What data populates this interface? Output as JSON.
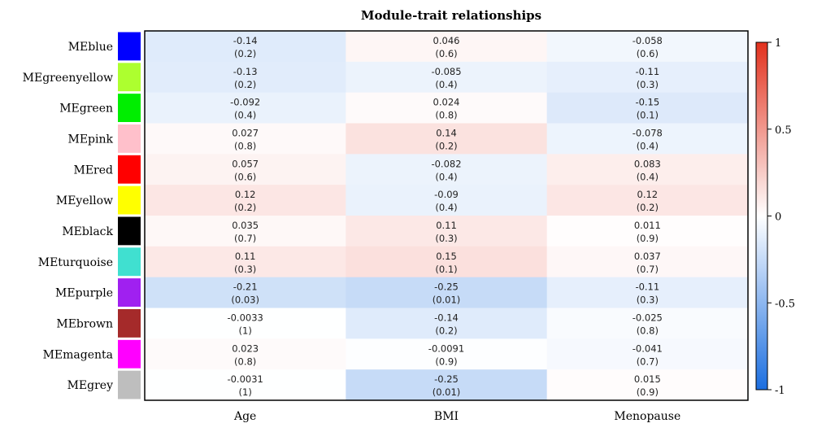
{
  "chart_data": {
    "type": "heatmap",
    "title": "Module-trait relationships",
    "xlabel": "",
    "ylabel": "",
    "columns": [
      "Age",
      "BMI",
      "Menopause"
    ],
    "rows": [
      {
        "name": "MEblue",
        "color": "#0000ff",
        "corr": [
          -0.14,
          0.046,
          -0.058
        ],
        "p": [
          "(0.2)",
          "(0.6)",
          "(0.6)"
        ]
      },
      {
        "name": "MEgreenyellow",
        "color": "#adff2f",
        "corr": [
          -0.13,
          -0.085,
          -0.11
        ],
        "p": [
          "(0.2)",
          "(0.4)",
          "(0.3)"
        ]
      },
      {
        "name": "MEgreen",
        "color": "#00ee00",
        "corr": [
          -0.092,
          0.024,
          -0.15
        ],
        "p": [
          "(0.4)",
          "(0.8)",
          "(0.1)"
        ]
      },
      {
        "name": "MEpink",
        "color": "#ffc0cb",
        "corr": [
          0.027,
          0.14,
          -0.078
        ],
        "p": [
          "(0.8)",
          "(0.2)",
          "(0.4)"
        ]
      },
      {
        "name": "MEred",
        "color": "#ff0000",
        "corr": [
          0.057,
          -0.082,
          0.083
        ],
        "p": [
          "(0.6)",
          "(0.4)",
          "(0.4)"
        ]
      },
      {
        "name": "MEyellow",
        "color": "#ffff00",
        "corr": [
          0.12,
          -0.09,
          0.12
        ],
        "p": [
          "(0.2)",
          "(0.4)",
          "(0.2)"
        ]
      },
      {
        "name": "MEblack",
        "color": "#000000",
        "corr": [
          0.035,
          0.11,
          0.011
        ],
        "p": [
          "(0.7)",
          "(0.3)",
          "(0.9)"
        ]
      },
      {
        "name": "MEturquoise",
        "color": "#40e0d0",
        "corr": [
          0.11,
          0.15,
          0.037
        ],
        "p": [
          "(0.3)",
          "(0.1)",
          "(0.7)"
        ]
      },
      {
        "name": "MEpurple",
        "color": "#a020f0",
        "corr": [
          -0.21,
          -0.25,
          -0.11
        ],
        "p": [
          "(0.03)",
          "(0.01)",
          "(0.3)"
        ]
      },
      {
        "name": "MEbrown",
        "color": "#a52a2a",
        "corr": [
          -0.0033,
          -0.14,
          -0.025
        ],
        "p": [
          "(1)",
          "(0.2)",
          "(0.8)"
        ]
      },
      {
        "name": "MEmagenta",
        "color": "#ff00ff",
        "corr": [
          0.023,
          -0.0091,
          -0.041
        ],
        "p": [
          "(0.8)",
          "(0.9)",
          "(0.7)"
        ]
      },
      {
        "name": "MEgrey",
        "color": "#bebebe",
        "corr": [
          -0.0031,
          -0.25,
          0.015
        ],
        "p": [
          "(1)",
          "(0.01)",
          "(0.9)"
        ]
      }
    ],
    "cell_labels": [
      [
        "-0.14",
        "0.046",
        "-0.058"
      ],
      [
        "-0.13",
        "-0.085",
        "-0.11"
      ],
      [
        "-0.092",
        "0.024",
        "-0.15"
      ],
      [
        "0.027",
        "0.14",
        "-0.078"
      ],
      [
        "0.057",
        "-0.082",
        "0.083"
      ],
      [
        "0.12",
        "-0.09",
        "0.12"
      ],
      [
        "0.035",
        "0.11",
        "0.011"
      ],
      [
        "0.11",
        "0.15",
        "0.037"
      ],
      [
        "-0.21",
        "-0.25",
        "-0.11"
      ],
      [
        "-0.0033",
        "-0.14",
        "-0.025"
      ],
      [
        "0.023",
        "-0.0091",
        "-0.041"
      ],
      [
        "-0.0031",
        "-0.25",
        "0.015"
      ]
    ],
    "colorscale": {
      "range": [
        -1,
        1
      ],
      "low": "#1b6ee0",
      "mid": "#ffffff",
      "high": "#e2311d",
      "ticks": [
        1,
        0.5,
        0,
        -0.5,
        -1
      ],
      "tick_labels": [
        "1",
        "0.5",
        "0",
        "-0.5",
        "-1"
      ]
    }
  }
}
